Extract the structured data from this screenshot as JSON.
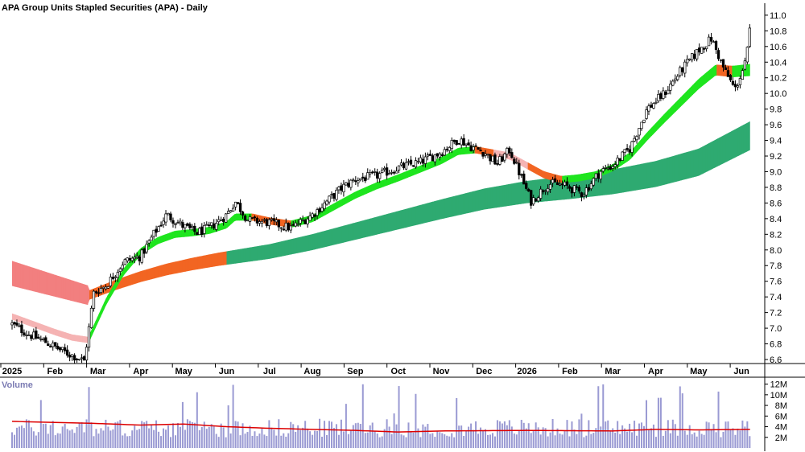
{
  "chart_data": {
    "type": "candlestick",
    "title": "APA Group Units Stapled Securities (APA) - Daily",
    "price_axis": {
      "min": 6.4,
      "max": 11.0,
      "ticks": [
        6.6,
        6.8,
        7.0,
        7.2,
        7.4,
        7.6,
        7.8,
        8.0,
        8.2,
        8.4,
        8.6,
        8.8,
        9.0,
        9.2,
        9.4,
        9.6,
        9.8,
        10.0,
        10.2,
        10.4,
        10.6,
        10.8,
        11.0
      ]
    },
    "x_axis": {
      "labels": [
        {
          "t": "2025",
          "month": 0
        },
        {
          "t": "Feb",
          "month": 1
        },
        {
          "t": "Mar",
          "month": 2
        },
        {
          "t": "Apr",
          "month": 3
        },
        {
          "t": "May",
          "month": 4
        },
        {
          "t": "Jun",
          "month": 5
        },
        {
          "t": "Jul",
          "month": 6
        },
        {
          "t": "Aug",
          "month": 7
        },
        {
          "t": "Sep",
          "month": 8
        },
        {
          "t": "Oct",
          "month": 9
        },
        {
          "t": "Nov",
          "month": 10
        },
        {
          "t": "Dec",
          "month": 11
        },
        {
          "t": "2026",
          "month": 12
        },
        {
          "t": "Feb",
          "month": 13
        },
        {
          "t": "Mar",
          "month": 14
        },
        {
          "t": "Apr",
          "month": 15
        },
        {
          "t": "May",
          "month": 16
        },
        {
          "t": "Jun",
          "month": 17
        }
      ]
    },
    "price_path": [
      [
        0.0,
        7.05
      ],
      [
        0.4,
        6.92
      ],
      [
        0.8,
        6.82
      ],
      [
        1.2,
        6.7
      ],
      [
        1.55,
        6.62
      ],
      [
        1.68,
        6.58
      ],
      [
        1.78,
        6.95
      ],
      [
        1.9,
        7.45
      ],
      [
        2.2,
        7.55
      ],
      [
        2.6,
        7.85
      ],
      [
        3.0,
        7.92
      ],
      [
        3.3,
        8.2
      ],
      [
        3.6,
        8.45
      ],
      [
        4.0,
        8.3
      ],
      [
        4.3,
        8.22
      ],
      [
        4.6,
        8.28
      ],
      [
        5.0,
        8.45
      ],
      [
        5.2,
        8.62
      ],
      [
        5.5,
        8.38
      ],
      [
        6.0,
        8.35
      ],
      [
        6.5,
        8.28
      ],
      [
        7.0,
        8.45
      ],
      [
        7.3,
        8.6
      ],
      [
        7.7,
        8.8
      ],
      [
        8.0,
        8.9
      ],
      [
        8.5,
        8.95
      ],
      [
        9.0,
        9.05
      ],
      [
        9.5,
        9.12
      ],
      [
        10.0,
        9.25
      ],
      [
        10.4,
        9.42
      ],
      [
        10.7,
        9.32
      ],
      [
        11.0,
        9.25
      ],
      [
        11.3,
        9.1
      ],
      [
        11.6,
        9.28
      ],
      [
        11.85,
        8.95
      ],
      [
        12.1,
        8.62
      ],
      [
        12.5,
        8.85
      ],
      [
        12.9,
        8.82
      ],
      [
        13.3,
        8.72
      ],
      [
        13.7,
        9.0
      ],
      [
        14.0,
        9.08
      ],
      [
        14.4,
        9.3
      ],
      [
        14.8,
        9.8
      ],
      [
        15.2,
        10.0
      ],
      [
        15.6,
        10.3
      ],
      [
        16.0,
        10.55
      ],
      [
        16.3,
        10.7
      ],
      [
        16.6,
        10.3
      ],
      [
        16.85,
        10.05
      ],
      [
        17.1,
        10.4
      ],
      [
        17.2,
        10.82
      ]
    ],
    "ema_short": [
      [
        1.78,
        6.85
      ],
      [
        2.2,
        7.35
      ],
      [
        2.6,
        7.72
      ],
      [
        3.0,
        7.98
      ],
      [
        3.4,
        8.12
      ],
      [
        3.8,
        8.2
      ],
      [
        4.2,
        8.22
      ],
      [
        4.6,
        8.25
      ],
      [
        5.0,
        8.32
      ],
      [
        5.2,
        8.42
      ],
      [
        5.6,
        8.42
      ],
      [
        6.0,
        8.37
      ],
      [
        6.5,
        8.33
      ],
      [
        7.0,
        8.4
      ],
      [
        7.5,
        8.55
      ],
      [
        8.0,
        8.7
      ],
      [
        8.5,
        8.82
      ],
      [
        9.0,
        8.92
      ],
      [
        9.5,
        9.03
      ],
      [
        10.0,
        9.14
      ],
      [
        10.4,
        9.26
      ],
      [
        10.8,
        9.28
      ],
      [
        11.2,
        9.24
      ],
      [
        11.6,
        9.2
      ],
      [
        12.0,
        9.08
      ],
      [
        12.4,
        8.96
      ],
      [
        12.8,
        8.9
      ],
      [
        13.2,
        8.92
      ],
      [
        13.6,
        8.96
      ],
      [
        14.0,
        9.05
      ],
      [
        14.4,
        9.2
      ],
      [
        14.8,
        9.45
      ],
      [
        15.2,
        9.68
      ],
      [
        15.6,
        9.9
      ],
      [
        16.0,
        10.12
      ],
      [
        16.4,
        10.3
      ],
      [
        16.8,
        10.28
      ],
      [
        17.2,
        10.3
      ]
    ],
    "ema_short_pre": [
      [
        0.0,
        7.15
      ],
      [
        0.5,
        7.05
      ],
      [
        1.0,
        6.95
      ],
      [
        1.4,
        6.88
      ],
      [
        1.78,
        6.85
      ]
    ],
    "ema_long": [
      [
        0.0,
        7.7
      ],
      [
        1.78,
        7.42
      ],
      [
        2.4,
        7.55
      ],
      [
        3.0,
        7.66
      ],
      [
        3.6,
        7.75
      ],
      [
        4.2,
        7.82
      ],
      [
        4.8,
        7.88
      ],
      [
        5.4,
        7.93
      ],
      [
        6.0,
        7.98
      ],
      [
        7.0,
        8.1
      ],
      [
        8.0,
        8.24
      ],
      [
        9.0,
        8.38
      ],
      [
        10.0,
        8.52
      ],
      [
        11.0,
        8.65
      ],
      [
        12.0,
        8.74
      ],
      [
        13.0,
        8.8
      ],
      [
        14.0,
        8.87
      ],
      [
        15.0,
        8.97
      ],
      [
        16.0,
        9.12
      ],
      [
        17.2,
        9.46
      ]
    ],
    "volume_panel": {
      "label": "Volume",
      "min": 0,
      "max": 13000000,
      "ticks": [
        {
          "v": 2000000,
          "t": "2M"
        },
        {
          "v": 4000000,
          "t": "4M"
        },
        {
          "v": 6000000,
          "t": "6M"
        },
        {
          "v": 8000000,
          "t": "8M"
        },
        {
          "v": 10000000,
          "t": "10M"
        },
        {
          "v": 12000000,
          "t": "12M"
        }
      ],
      "ma_path": [
        [
          0.0,
          5.0
        ],
        [
          2.0,
          4.6
        ],
        [
          3.0,
          4.3
        ],
        [
          4.0,
          4.5
        ],
        [
          5.0,
          4.0
        ],
        [
          6.0,
          3.7
        ],
        [
          8.0,
          3.3
        ],
        [
          9.0,
          3.0
        ],
        [
          10.0,
          3.2
        ],
        [
          12.0,
          3.3
        ],
        [
          14.0,
          3.2
        ],
        [
          15.0,
          3.5
        ],
        [
          16.0,
          3.4
        ],
        [
          17.2,
          3.5
        ]
      ]
    },
    "colors": {
      "candle": "#000000",
      "ema_short_up": "#1fe51f",
      "ema_short_down": "#f26522",
      "ema_short_pre": "#f5b3b3",
      "ema_long_up": "#2eaa71",
      "ema_long_down": "#f26522",
      "ema_long_pre": "#f27f7f",
      "volume_bar": "#9a9ad3",
      "volume_ma": "#dd0000",
      "axis": "#000000"
    }
  }
}
